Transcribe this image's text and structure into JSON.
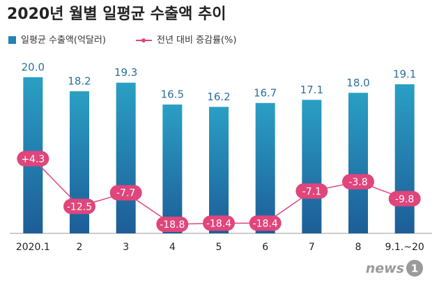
{
  "chart_data": {
    "type": "bar-line",
    "title": "2020년 월별 일평균 수출액 추이",
    "categories": [
      "2020.1",
      "2",
      "3",
      "4",
      "5",
      "6",
      "7",
      "8",
      "9.1.~20"
    ],
    "series": [
      {
        "name": "일평균 수출액(억달러)",
        "color": "#2383b3",
        "values": [
          20.0,
          18.2,
          19.3,
          16.5,
          16.2,
          16.7,
          17.1,
          18.0,
          19.1
        ],
        "value_labels": [
          "20.0",
          "18.2",
          "19.3",
          "16.5",
          "16.2",
          "16.7",
          "17.1",
          "18.0",
          "19.1"
        ]
      },
      {
        "name": "전년 대비 증감률(%)",
        "color": "#e0457b",
        "axis": "y2",
        "values": [
          4.3,
          -12.5,
          -7.7,
          -18.8,
          -18.4,
          -18.4,
          -7.1,
          -3.8,
          -9.8
        ],
        "value_labels": [
          "+4.3",
          "-12.5",
          "-7.7",
          "-18.8",
          "-18.4",
          "-18.4",
          "-7.1",
          "-3.8",
          "-9.8"
        ]
      }
    ],
    "ylim": [
      0,
      24
    ],
    "y2lim": [
      -22,
      44
    ],
    "logo_text": "news",
    "logo_mark": "1"
  }
}
